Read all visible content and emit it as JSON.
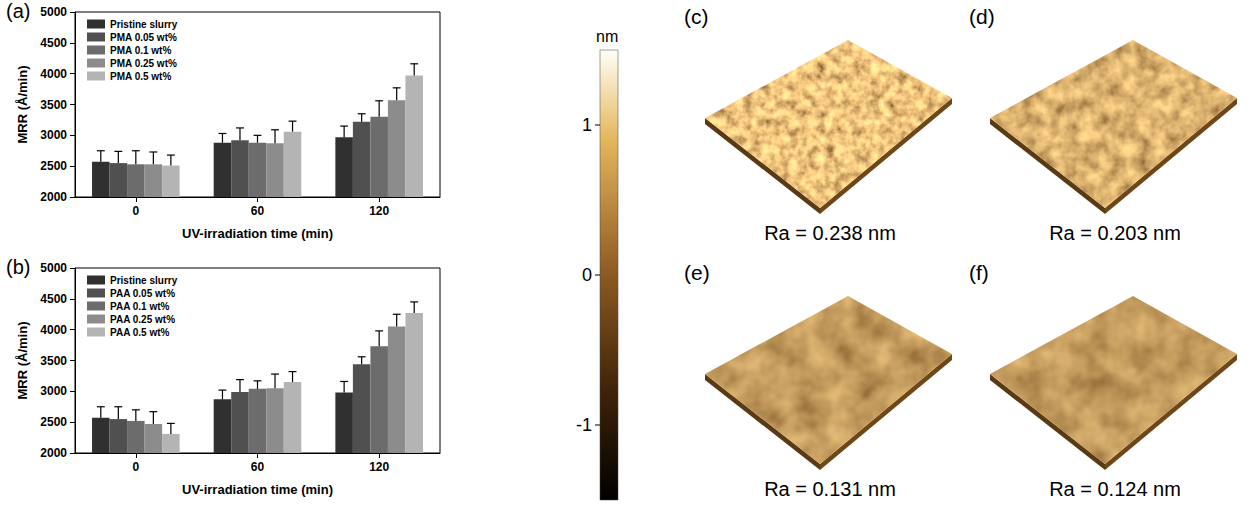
{
  "chart_data": [
    {
      "type": "bar",
      "panel": "(a)",
      "x_label": "UV-irradiation time (min)",
      "y_label": "MRR (Å/min)",
      "categories": [
        "0",
        "60",
        "120"
      ],
      "series": [
        {
          "name": "Pristine slurry",
          "color": "#303030",
          "values": [
            2570,
            2880,
            2970
          ],
          "errors": [
            180,
            150,
            180
          ]
        },
        {
          "name": "PMA 0.05 wt%",
          "color": "#505050",
          "values": [
            2550,
            2920,
            3220
          ],
          "errors": [
            190,
            200,
            130
          ]
        },
        {
          "name": "PMA 0.1 wt%",
          "color": "#6c6c6c",
          "values": [
            2530,
            2880,
            3300
          ],
          "errors": [
            220,
            120,
            260
          ]
        },
        {
          "name": "PMA 0.25 wt%",
          "color": "#8c8c8c",
          "values": [
            2530,
            2870,
            3570
          ],
          "errors": [
            200,
            220,
            200
          ]
        },
        {
          "name": "PMA 0.5 wt%",
          "color": "#b4b4b4",
          "values": [
            2510,
            3060,
            3970
          ],
          "errors": [
            170,
            170,
            190
          ]
        }
      ],
      "ylim": [
        2000,
        5000
      ],
      "yticks": [
        2000,
        2500,
        3000,
        3500,
        4000,
        4500,
        5000
      ],
      "grid": false,
      "legend": "upper left"
    },
    {
      "type": "bar",
      "panel": "(b)",
      "x_label": "UV-irradiation time (min)",
      "y_label": "MRR (Å/min)",
      "categories": [
        "0",
        "60",
        "120"
      ],
      "series": [
        {
          "name": "Pristine slurry",
          "color": "#303030",
          "values": [
            2570,
            2870,
            2980
          ],
          "errors": [
            180,
            150,
            180
          ]
        },
        {
          "name": "PAA 0.05 wt%",
          "color": "#505050",
          "values": [
            2550,
            2990,
            3440
          ],
          "errors": [
            200,
            200,
            120
          ]
        },
        {
          "name": "PAA 0.1 wt%",
          "color": "#6c6c6c",
          "values": [
            2520,
            3040,
            3730
          ],
          "errors": [
            180,
            130,
            250
          ]
        },
        {
          "name": "PAA 0.25 wt%",
          "color": "#8c8c8c",
          "values": [
            2470,
            3050,
            4050
          ],
          "errors": [
            200,
            230,
            200
          ]
        },
        {
          "name": "PAA 0.5 wt%",
          "color": "#b4b4b4",
          "values": [
            2310,
            3150,
            4270
          ],
          "errors": [
            170,
            170,
            180
          ]
        }
      ],
      "ylim": [
        2000,
        5000
      ],
      "yticks": [
        2000,
        2500,
        3000,
        3500,
        4000,
        4500,
        5000
      ],
      "grid": false,
      "legend": "upper left"
    }
  ],
  "color_bar": {
    "label": "nm",
    "range": [
      -1.5,
      1.5
    ],
    "ticks": [
      -1,
      0,
      1
    ]
  },
  "afm_images": [
    {
      "panel": "(c)",
      "caption": "Ra = 0.238 nm"
    },
    {
      "panel": "(d)",
      "caption": "Ra = 0.203 nm"
    },
    {
      "panel": "(e)",
      "caption": "Ra = 0.131 nm"
    },
    {
      "panel": "(f)",
      "caption": "Ra = 0.124 nm"
    }
  ]
}
